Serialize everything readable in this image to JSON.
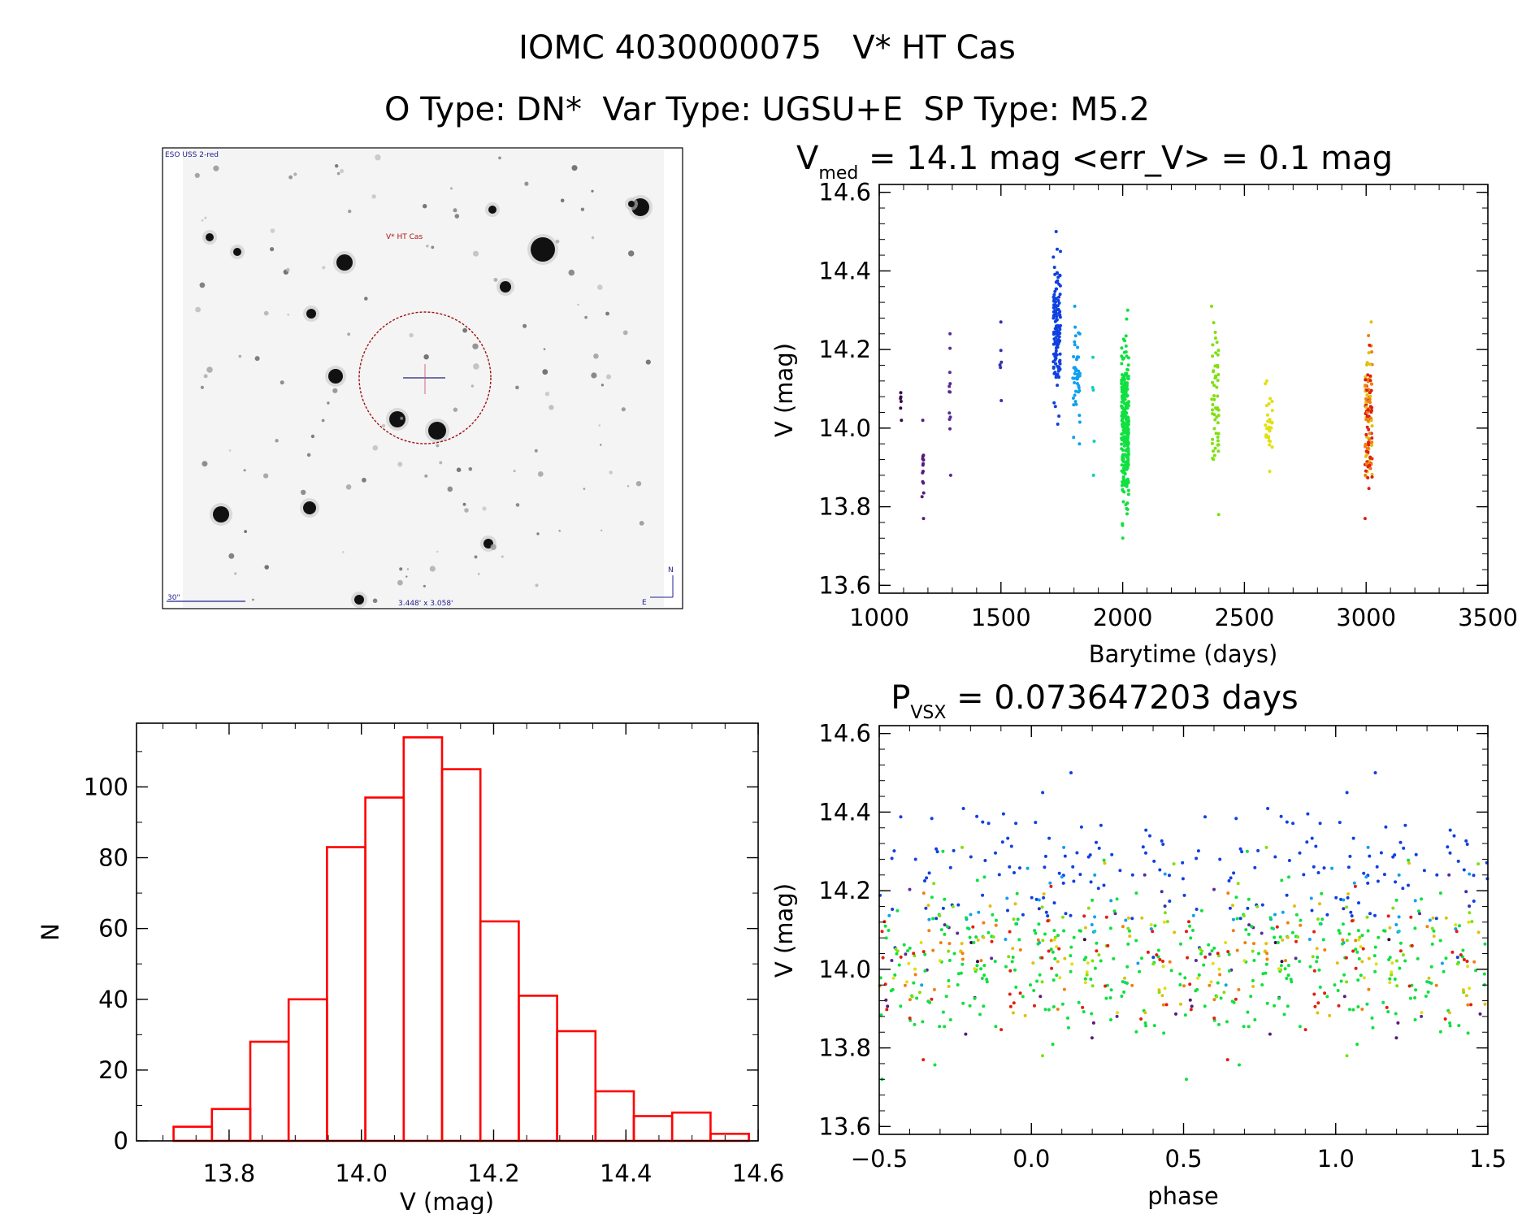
{
  "header": {
    "title": "IOMC 4030000075   V* HT Cas",
    "subtitle": "O Type: DN*  Var Type: UGSU+E  SP Type: M5.2"
  },
  "finder": {
    "survey_label": "ESO USS 2-red",
    "target_label": "V* HT Cas",
    "scale_label": "30\"",
    "fov_label": "3.448' x 3.058'",
    "north_label": "N",
    "east_label": "E"
  },
  "lightcurve_title": {
    "v": "V",
    "sub": "med",
    "rest": " = 14.1 mag <err_V> = 0.1 mag"
  },
  "phase_title": {
    "p": "P",
    "sub": "VSX",
    "rest": " = 0.073647203 days"
  },
  "chart_data": [
    {
      "type": "scatter",
      "title": "V_med = 14.1 mag <err_V> = 0.1 mag",
      "xlabel": "Barytime (days)",
      "ylabel": "V (mag)",
      "xlim": [
        1000,
        3500
      ],
      "ylim": [
        14.62,
        13.58
      ],
      "xticks": [
        "1000",
        "1500",
        "2000",
        "2500",
        "3000",
        "3500"
      ],
      "yticks": [
        "13.6",
        "13.8",
        "14.0",
        "14.2",
        "14.4",
        "14.6"
      ],
      "seasons": [
        {
          "t": 1090,
          "vmin": 14.02,
          "vmax": 14.09,
          "n": 6,
          "color": "#3a0a4a"
        },
        {
          "t": 1180,
          "vmin": 13.77,
          "vmax": 14.02,
          "n": 14,
          "color": "#5a1a7a"
        },
        {
          "t": 1290,
          "vmin": 13.88,
          "vmax": 14.24,
          "n": 12,
          "color": "#5a2a9a"
        },
        {
          "t": 1500,
          "vmin": 14.07,
          "vmax": 14.27,
          "n": 6,
          "color": "#3232b0"
        },
        {
          "t": 1730,
          "vmin": 14.01,
          "vmax": 14.5,
          "n": 130,
          "color": "#1040e0"
        },
        {
          "t": 1810,
          "vmin": 13.96,
          "vmax": 14.31,
          "n": 45,
          "color": "#10a0f0"
        },
        {
          "t": 1880,
          "vmin": 13.88,
          "vmax": 14.18,
          "n": 5,
          "color": "#10d0c0"
        },
        {
          "t": 2010,
          "vmin": 13.72,
          "vmax": 14.3,
          "n": 260,
          "color": "#10e040"
        },
        {
          "t": 2380,
          "vmin": 13.78,
          "vmax": 14.31,
          "n": 55,
          "color": "#80e010"
        },
        {
          "t": 2600,
          "vmin": 13.89,
          "vmax": 14.12,
          "n": 30,
          "color": "#e0e010"
        },
        {
          "t": 3010,
          "vmin": 13.77,
          "vmax": 14.27,
          "n": 130,
          "color": "#f08010"
        }
      ]
    },
    {
      "type": "bar",
      "title": "",
      "xlabel": "V (mag)",
      "ylabel": "N",
      "xlim": [
        13.66,
        14.6
      ],
      "ylim": [
        0,
        118
      ],
      "xticks": [
        "13.8",
        "14.0",
        "14.2",
        "14.4",
        "14.6"
      ],
      "yticks": [
        "0",
        "20",
        "40",
        "60",
        "80",
        "100"
      ],
      "bin_width": 0.058,
      "bin_left_edges": [
        13.716,
        13.774,
        13.832,
        13.89,
        13.948,
        14.006,
        14.064,
        14.122,
        14.18,
        14.238,
        14.296,
        14.354,
        14.412,
        14.47,
        14.528
      ],
      "values": [
        4,
        9,
        28,
        40,
        83,
        97,
        114,
        105,
        62,
        41,
        31,
        14,
        7,
        8,
        2
      ],
      "color": "#ff0000"
    },
    {
      "type": "scatter",
      "title": "P_VSX = 0.073647203 days",
      "xlabel": "phase",
      "ylabel": "V (mag)",
      "xlim": [
        -0.5,
        1.5
      ],
      "ylim": [
        14.62,
        13.58
      ],
      "xticks": [
        "−0.5",
        "0.0",
        "0.5",
        "1.0",
        "1.5"
      ],
      "yticks": [
        "13.6",
        "13.8",
        "14.0",
        "14.2",
        "14.4",
        "14.6"
      ],
      "period_days": 0.073647203,
      "phase_colors": [
        "#1040e0",
        "#10e040",
        "#10e040",
        "#80e010",
        "#f08010",
        "#e0e010",
        "#10a0f0",
        "#e02010"
      ]
    }
  ]
}
